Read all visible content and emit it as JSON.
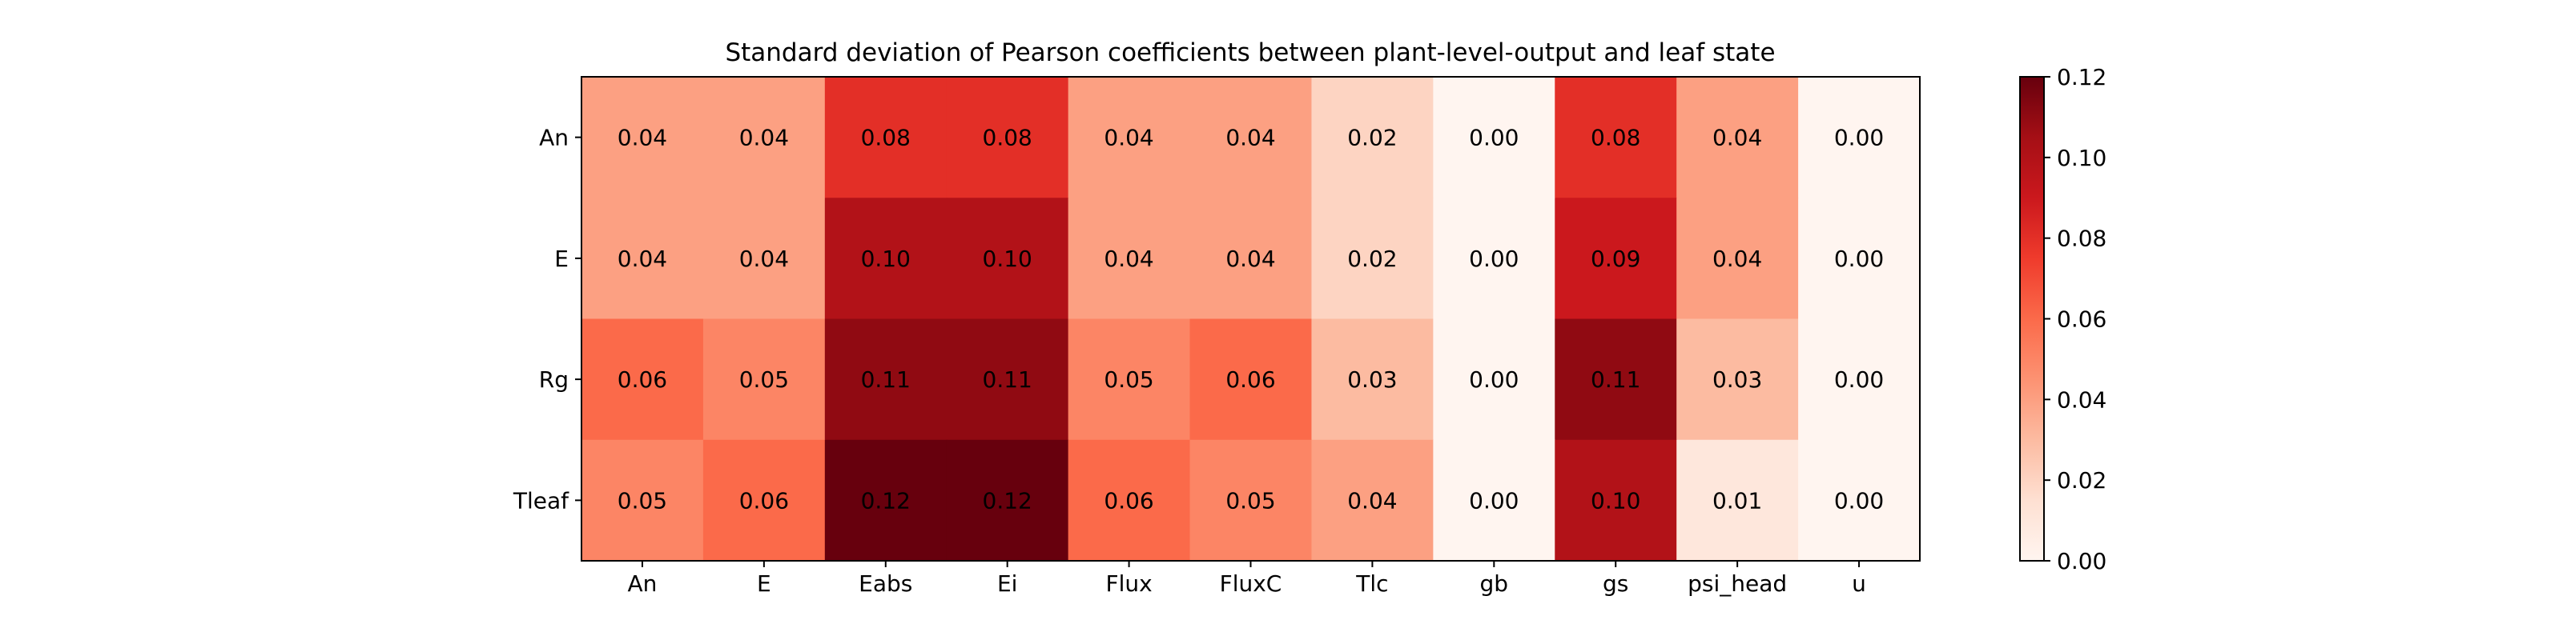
{
  "chart_data": {
    "type": "heatmap",
    "title": "Standard deviation of Pearson coefficients between plant-level-output and leaf state",
    "xlabel": "",
    "ylabel": "",
    "x_categories": [
      "An",
      "E",
      "Eabs",
      "Ei",
      "Flux",
      "FluxC",
      "Tlc",
      "gb",
      "gs",
      "psi_head",
      "u"
    ],
    "y_categories": [
      "An",
      "E",
      "Rg",
      "Tleaf"
    ],
    "values": [
      [
        0.04,
        0.04,
        0.08,
        0.08,
        0.04,
        0.04,
        0.02,
        0.0,
        0.08,
        0.04,
        0.0
      ],
      [
        0.04,
        0.04,
        0.1,
        0.1,
        0.04,
        0.04,
        0.02,
        0.0,
        0.09,
        0.04,
        0.0
      ],
      [
        0.06,
        0.05,
        0.11,
        0.11,
        0.05,
        0.06,
        0.03,
        0.0,
        0.11,
        0.03,
        0.0
      ],
      [
        0.05,
        0.06,
        0.12,
        0.12,
        0.06,
        0.05,
        0.04,
        0.0,
        0.1,
        0.01,
        0.0
      ]
    ],
    "cell_labels": [
      [
        "0.04",
        "0.04",
        "0.08",
        "0.08",
        "0.04",
        "0.04",
        "0.02",
        "0.00",
        "0.08",
        "0.04",
        "0.00"
      ],
      [
        "0.04",
        "0.04",
        "0.10",
        "0.10",
        "0.04",
        "0.04",
        "0.02",
        "0.00",
        "0.09",
        "0.04",
        "0.00"
      ],
      [
        "0.06",
        "0.05",
        "0.11",
        "0.11",
        "0.05",
        "0.06",
        "0.03",
        "0.00",
        "0.11",
        "0.03",
        "0.00"
      ],
      [
        "0.05",
        "0.06",
        "0.12",
        "0.12",
        "0.06",
        "0.05",
        "0.04",
        "0.00",
        "0.10",
        "0.01",
        "0.00"
      ]
    ],
    "colormap": "Reds",
    "vmin": 0.0,
    "vmax": 0.12,
    "colorbar_ticks": [
      "0.00",
      "0.02",
      "0.04",
      "0.06",
      "0.08",
      "0.10",
      "0.12"
    ],
    "grid": false,
    "legend": "colorbar-right"
  }
}
